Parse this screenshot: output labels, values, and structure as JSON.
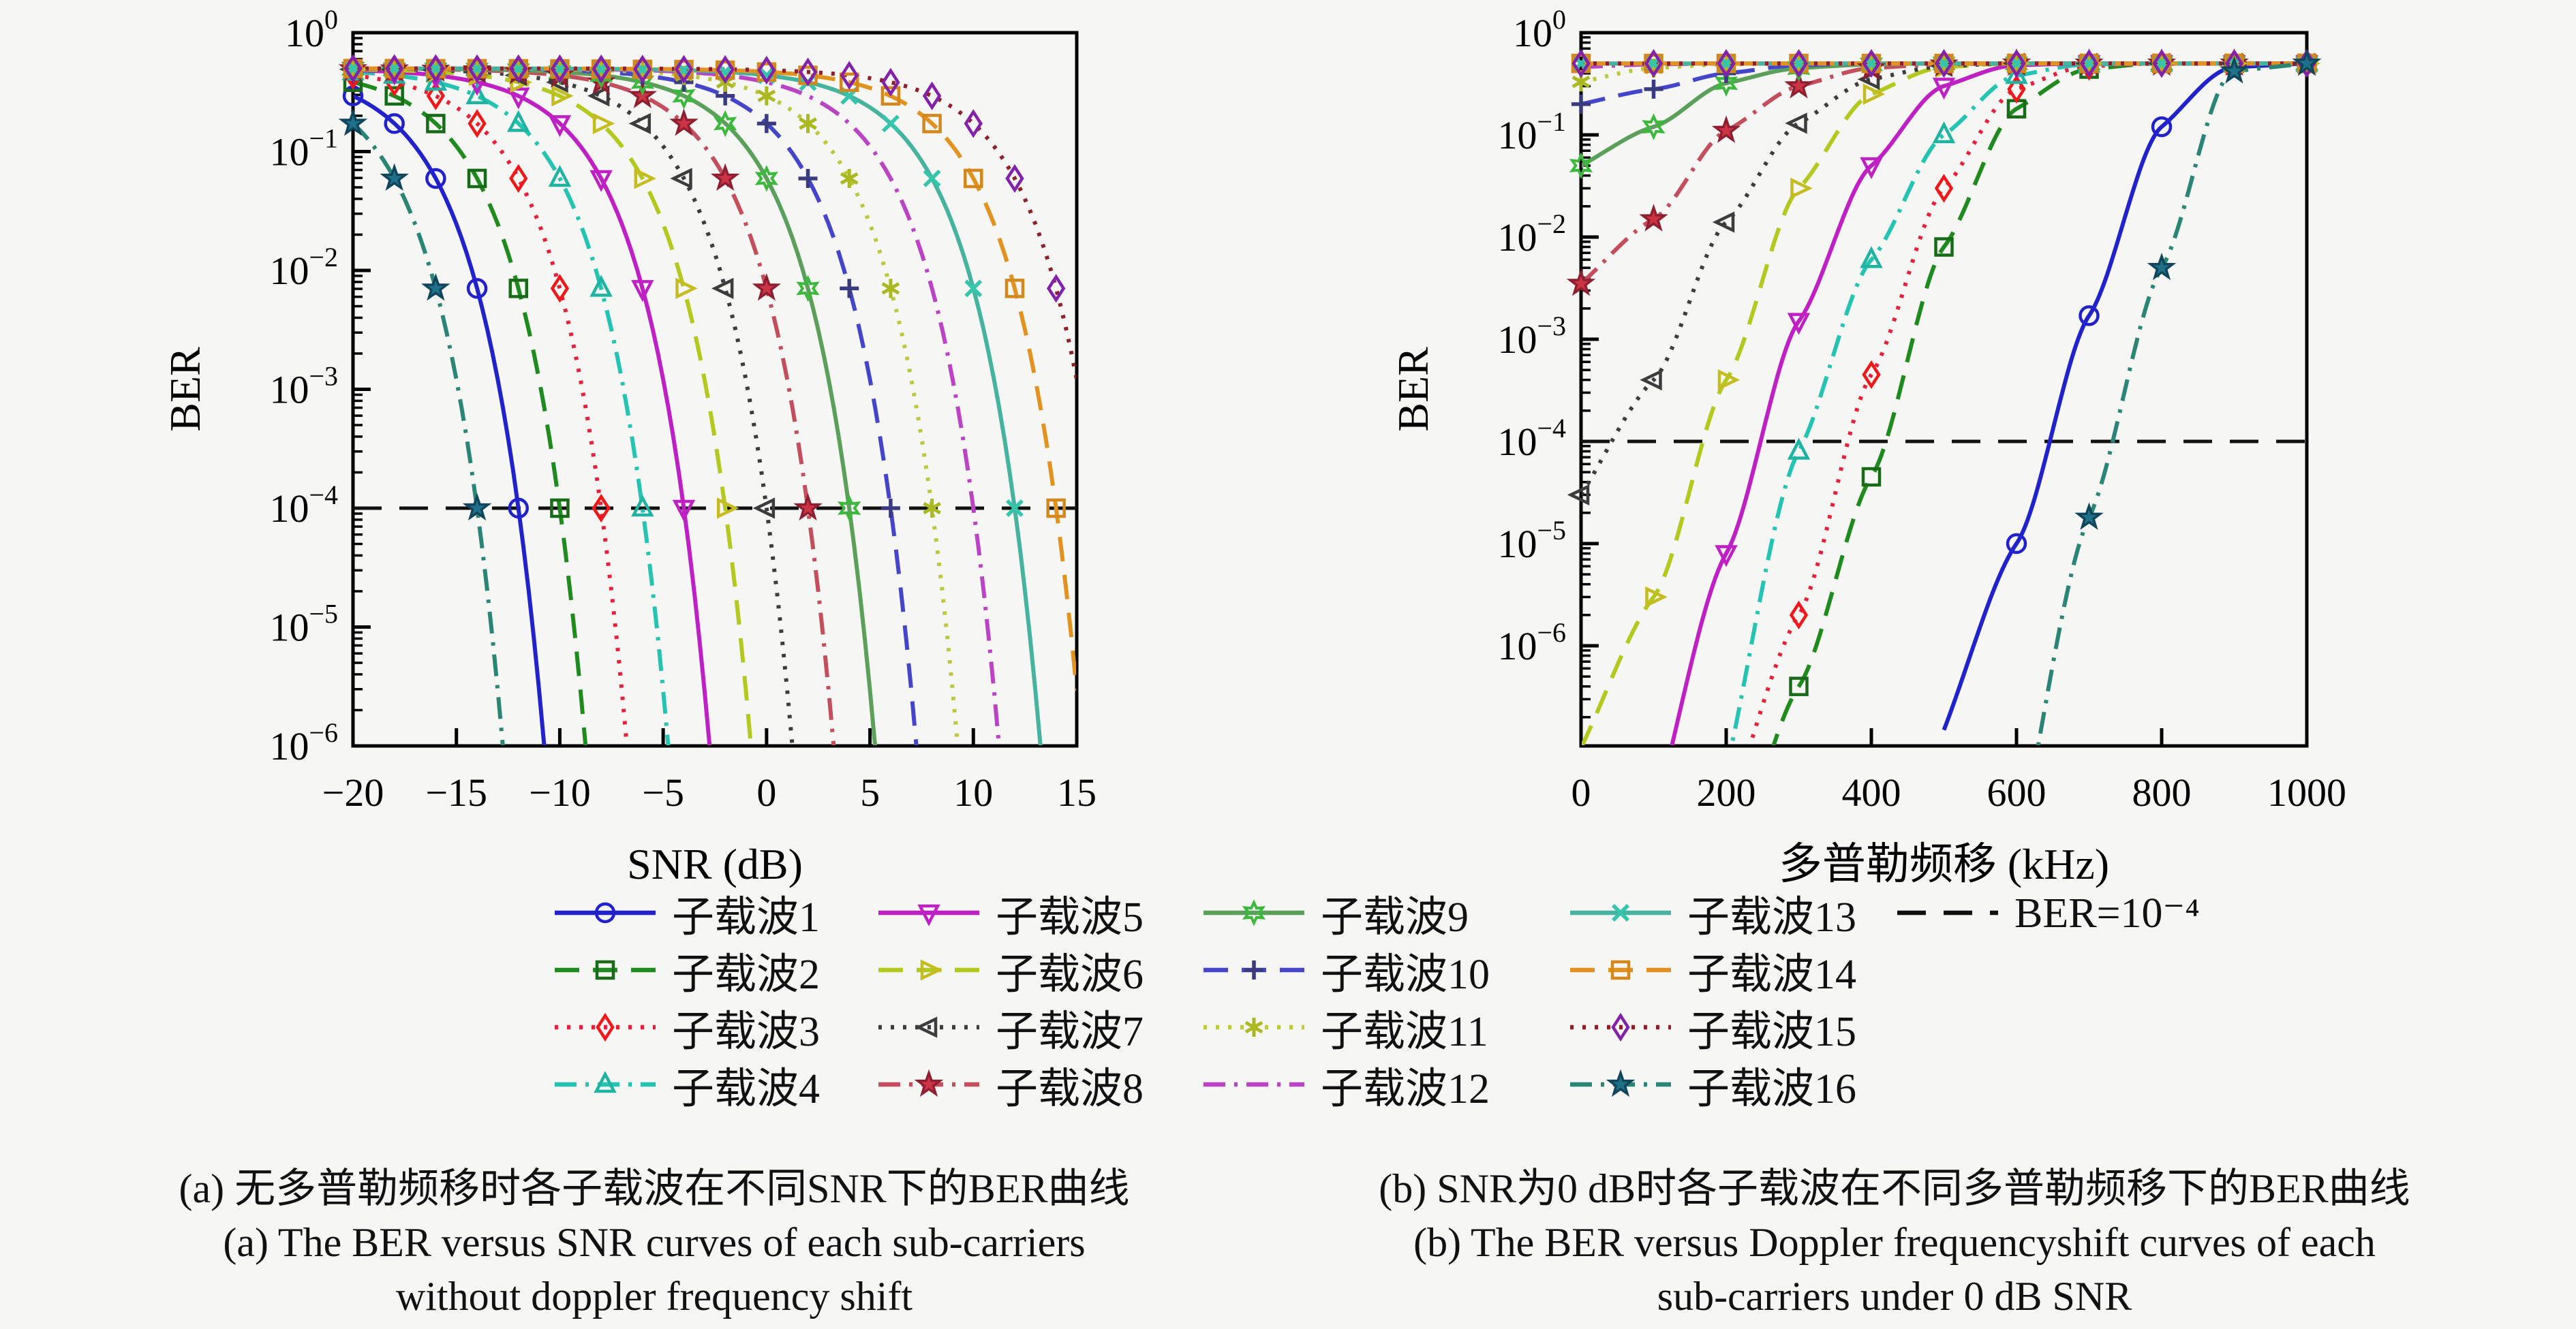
{
  "figure": {
    "background": "#f6f6f4",
    "axis_color": "#000000",
    "threshold_color": "#111111"
  },
  "axes": {
    "panel_a": {
      "xlabel": "SNR (dB)",
      "ylabel": "BER",
      "xtick_labels": [
        "−20",
        "−15",
        "−10",
        "−5",
        "0",
        "5",
        "10",
        "15"
      ]
    },
    "panel_b": {
      "xlabel": "多普勒频移 (kHz)",
      "ylabel": "BER",
      "xtick_labels": [
        "0",
        "200",
        "400",
        "600",
        "800",
        "1000"
      ]
    },
    "ytick_exponents": [
      "0",
      "-1",
      "-2",
      "-3",
      "-4",
      "-5",
      "-6"
    ]
  },
  "legend": {
    "entries": [
      {
        "id": "c1",
        "label": "子载波1",
        "color": "#2222cc",
        "marker": "circle",
        "marker_color": "#2222cc",
        "linestyle": "solid"
      },
      {
        "id": "c2",
        "label": "子载波2",
        "color": "#1f8b1f",
        "marker": "square",
        "marker_color": "#176b17",
        "linestyle": "dashed"
      },
      {
        "id": "c3",
        "label": "子载波3",
        "color": "#e8203a",
        "marker": "diamond",
        "marker_color": "#f01818",
        "linestyle": "dotted"
      },
      {
        "id": "c4",
        "label": "子载波4",
        "color": "#25c4b2",
        "marker": "triangle-up",
        "marker_color": "#1fb3a2",
        "linestyle": "dashdot"
      },
      {
        "id": "c5",
        "label": "子载波5",
        "color": "#bf20c4",
        "marker": "triangle-down",
        "marker_color": "#bf20c4",
        "linestyle": "solid"
      },
      {
        "id": "c6",
        "label": "子载波6",
        "color": "#b3c920",
        "marker": "triangle-right",
        "marker_color": "#c4bc20",
        "linestyle": "dashed"
      },
      {
        "id": "c7",
        "label": "子载波7",
        "color": "#3c3c3c",
        "marker": "triangle-left",
        "marker_color": "#3c3c3c",
        "linestyle": "dotted"
      },
      {
        "id": "c8",
        "label": "子载波8",
        "color": "#c44d5e",
        "marker": "star5-filled",
        "marker_color": "#cc3344",
        "marker_stroke": "#8e1f30",
        "linestyle": "dashdot"
      },
      {
        "id": "c9",
        "label": "子载波9",
        "color": "#5aa05a",
        "marker": "hexagram",
        "marker_color": "#3cb83c",
        "linestyle": "solid"
      },
      {
        "id": "c10",
        "label": "子载波10",
        "color": "#4545cc",
        "marker": "plus",
        "marker_color": "#3a3a80",
        "linestyle": "dashed"
      },
      {
        "id": "c11",
        "label": "子载波11",
        "color": "#bcc83e",
        "marker": "asterisk",
        "marker_color": "#aab822",
        "linestyle": "dotted"
      },
      {
        "id": "c12",
        "label": "子载波12",
        "color": "#bb44c4",
        "marker": "none",
        "marker_color": "#bb44c4",
        "linestyle": "dashdot"
      },
      {
        "id": "c13",
        "label": "子载波13",
        "color": "#45b39d",
        "marker": "x",
        "marker_color": "#35c4ac",
        "linestyle": "solid"
      },
      {
        "id": "c14",
        "label": "子载波14",
        "color": "#e2921f",
        "marker": "square",
        "marker_color": "#d4881c",
        "linestyle": "dashed"
      },
      {
        "id": "c15",
        "label": "子载波15",
        "color": "#8f1f28",
        "marker": "diamond",
        "marker_color": "#8321a8",
        "linestyle": "dotted"
      },
      {
        "id": "c16",
        "label": "子载波16",
        "color": "#2a8575",
        "marker": "star5-filled",
        "marker_color": "#1f7189",
        "marker_stroke": "#10455c",
        "linestyle": "dashdot"
      }
    ],
    "threshold_entry": {
      "label": "BER=10⁻⁴",
      "color": "#111111",
      "linestyle": "dashed",
      "marker": "none"
    }
  },
  "captions": {
    "a_cn": "(a) 无多普勒频移时各子载波在不同SNR下的BER曲线",
    "a_en1": "(a) The BER versus SNR curves of each sub-carriers",
    "a_en2": "without doppler frequency shift",
    "b_cn": "(b) SNR为0 dB时各子载波在不同多普勒频移下的BER曲线",
    "b_en1": "(b) The BER versus Doppler frequencyshift curves of each",
    "b_en2": "sub-carriers under 0 dB SNR"
  },
  "chart_data": [
    {
      "id": "panel_a",
      "type": "line",
      "title": "",
      "xlabel": "SNR (dB)",
      "ylabel": "BER",
      "xlim": [
        -20,
        15
      ],
      "xticks": [
        -20,
        -15,
        -10,
        -5,
        0,
        5,
        10,
        15
      ],
      "ylim_log10": [
        -6,
        0
      ],
      "grid": false,
      "threshold_ber": 0.0001,
      "marker_x": [
        -20,
        -18,
        -16,
        -14,
        -12,
        -10,
        -8,
        -6,
        -4,
        -2,
        0,
        2,
        4,
        6,
        8,
        10,
        12,
        14
      ],
      "waterfall_model": {
        "form": "log10(ber) = -0.301 - 3.7*2^((snr - snr_cross)/2)",
        "amplitude": 3.7,
        "halving_db": 2,
        "plateau_ber": 0.5
      },
      "series": [
        {
          "name": "子载波1",
          "snr_cross_1e-4": -12,
          "y": [
            0.294,
            0.172,
            0.0594,
            0.00706,
            0.0001,
            2e-08,
            null,
            null,
            null,
            null,
            null,
            null,
            null,
            null,
            null,
            null,
            null,
            null
          ]
        },
        {
          "name": "子载波2",
          "snr_cross_1e-4": -10,
          "y": [
            0.383,
            0.294,
            0.172,
            0.0594,
            0.00706,
            0.0001,
            2e-08,
            null,
            null,
            null,
            null,
            null,
            null,
            null,
            null,
            null,
            null,
            null
          ]
        },
        {
          "name": "子载波3",
          "snr_cross_1e-4": -8,
          "y": [
            0.438,
            0.383,
            0.294,
            0.172,
            0.0594,
            0.00706,
            0.0001,
            2e-08,
            null,
            null,
            null,
            null,
            null,
            null,
            null,
            null,
            null,
            null
          ]
        },
        {
          "name": "子载波4",
          "snr_cross_1e-4": -6,
          "y": [
            0.467,
            0.438,
            0.383,
            0.294,
            0.172,
            0.0594,
            0.00706,
            0.0001,
            2e-08,
            null,
            null,
            null,
            null,
            null,
            null,
            null,
            null,
            null
          ]
        },
        {
          "name": "子载波5",
          "snr_cross_1e-4": -4,
          "y": [
            0.484,
            0.467,
            0.438,
            0.383,
            0.294,
            0.172,
            0.0594,
            0.00706,
            0.0001,
            2e-08,
            null,
            null,
            null,
            null,
            null,
            null,
            null,
            null
          ]
        },
        {
          "name": "子载波6",
          "snr_cross_1e-4": -2,
          "y": [
            0.49,
            0.484,
            0.467,
            0.438,
            0.383,
            0.294,
            0.172,
            0.0594,
            0.00706,
            0.0001,
            2e-08,
            null,
            null,
            null,
            null,
            null,
            null,
            null
          ]
        },
        {
          "name": "子载波7",
          "snr_cross_1e-4": 0,
          "y": [
            0.492,
            0.49,
            0.484,
            0.467,
            0.438,
            0.383,
            0.294,
            0.172,
            0.0594,
            0.00706,
            0.0001,
            2e-08,
            null,
            null,
            null,
            null,
            null,
            null
          ]
        },
        {
          "name": "子载波8",
          "snr_cross_1e-4": 2,
          "y": [
            0.494,
            0.492,
            0.49,
            0.484,
            0.467,
            0.438,
            0.383,
            0.294,
            0.172,
            0.0594,
            0.00706,
            0.0001,
            2e-08,
            null,
            null,
            null,
            null,
            null
          ]
        },
        {
          "name": "子载波9",
          "snr_cross_1e-4": 4,
          "y": [
            0.496,
            0.494,
            0.492,
            0.49,
            0.484,
            0.467,
            0.438,
            0.383,
            0.294,
            0.172,
            0.0594,
            0.00706,
            0.0001,
            2e-08,
            null,
            null,
            null,
            null
          ]
        },
        {
          "name": "子载波10",
          "snr_cross_1e-4": 6,
          "y": [
            0.497,
            0.496,
            0.494,
            0.492,
            0.49,
            0.484,
            0.467,
            0.438,
            0.383,
            0.294,
            0.172,
            0.0594,
            0.00706,
            0.0001,
            2e-08,
            null,
            null,
            null
          ]
        },
        {
          "name": "子载波11",
          "snr_cross_1e-4": 8,
          "y": [
            0.498,
            0.497,
            0.496,
            0.494,
            0.492,
            0.49,
            0.484,
            0.467,
            0.438,
            0.383,
            0.294,
            0.172,
            0.0594,
            0.00706,
            0.0001,
            2e-08,
            null,
            null
          ]
        },
        {
          "name": "子载波12",
          "snr_cross_1e-4": 10,
          "y": [
            0.498,
            0.498,
            0.497,
            0.496,
            0.494,
            0.492,
            0.49,
            0.484,
            0.467,
            0.438,
            0.383,
            0.294,
            0.172,
            0.0594,
            0.00706,
            0.0001,
            2e-08,
            null
          ]
        },
        {
          "name": "子载波13",
          "snr_cross_1e-4": 12,
          "y": [
            0.499,
            0.498,
            0.498,
            0.497,
            0.496,
            0.494,
            0.492,
            0.49,
            0.484,
            0.467,
            0.438,
            0.383,
            0.294,
            0.172,
            0.0594,
            0.00706,
            0.0001,
            2e-08
          ]
        },
        {
          "name": "子载波14",
          "snr_cross_1e-4": 14,
          "y": [
            0.499,
            0.499,
            0.498,
            0.498,
            0.497,
            0.496,
            0.494,
            0.492,
            0.49,
            0.484,
            0.467,
            0.438,
            0.383,
            0.294,
            0.172,
            0.0594,
            0.00706,
            0.0001
          ]
        },
        {
          "name": "子载波15",
          "snr_cross_1e-4": 16,
          "y": [
            0.5,
            0.499,
            0.499,
            0.498,
            0.498,
            0.497,
            0.496,
            0.494,
            0.492,
            0.49,
            0.484,
            0.467,
            0.438,
            0.383,
            0.294,
            0.172,
            0.0594,
            0.00706
          ]
        },
        {
          "name": "子载波16",
          "snr_cross_1e-4": -14,
          "y": [
            0.172,
            0.0594,
            0.00706,
            0.0001,
            2e-08,
            null,
            null,
            null,
            null,
            null,
            null,
            null,
            null,
            null,
            null,
            null,
            null,
            null
          ]
        }
      ]
    },
    {
      "id": "panel_b",
      "type": "line",
      "title": "",
      "xlabel": "多普勒频移 (kHz)",
      "ylabel": "BER",
      "xlim": [
        0,
        1000
      ],
      "xticks": [
        0,
        200,
        400,
        600,
        800,
        1000
      ],
      "ylim_log10": [
        -6.98,
        0
      ],
      "grid": false,
      "threshold_ber": 0.0001,
      "x": [
        0,
        100,
        200,
        300,
        400,
        500,
        600,
        700,
        800,
        900,
        1000
      ],
      "series": [
        {
          "name": "子载波1",
          "y": [
            null,
            null,
            null,
            null,
            null,
            1.5e-07,
            1e-05,
            0.0017,
            0.12,
            0.46,
            0.5
          ]
        },
        {
          "name": "子载波2",
          "y": [
            null,
            null,
            3e-09,
            4e-07,
            4.5e-05,
            0.008,
            0.18,
            0.44,
            0.5,
            0.5,
            0.5
          ]
        },
        {
          "name": "子载波3",
          "y": [
            null,
            null,
            2e-08,
            2e-06,
            0.00045,
            0.03,
            0.28,
            0.47,
            0.5,
            0.5,
            0.5
          ]
        },
        {
          "name": "子载波4",
          "y": [
            null,
            null,
            6e-08,
            8e-05,
            0.006,
            0.1,
            0.38,
            0.49,
            0.5,
            0.5,
            0.5
          ]
        },
        {
          "name": "子载波5",
          "y": [
            null,
            2e-08,
            8e-06,
            0.0015,
            0.05,
            0.3,
            0.48,
            0.5,
            0.5,
            0.5,
            0.5
          ]
        },
        {
          "name": "子载波6",
          "y": [
            1e-07,
            3e-06,
            0.0004,
            0.03,
            0.25,
            0.46,
            0.5,
            0.5,
            0.5,
            0.5,
            0.5
          ]
        },
        {
          "name": "子载波7",
          "y": [
            3e-05,
            0.0004,
            0.014,
            0.13,
            0.35,
            0.47,
            0.5,
            0.5,
            0.5,
            0.5,
            0.5
          ]
        },
        {
          "name": "子载波8",
          "y": [
            0.0035,
            0.015,
            0.11,
            0.3,
            0.45,
            0.49,
            0.5,
            0.5,
            0.5,
            0.5,
            0.5
          ]
        },
        {
          "name": "子载波9",
          "y": [
            0.05,
            0.12,
            0.32,
            0.45,
            0.49,
            0.5,
            0.5,
            0.5,
            0.5,
            0.5,
            0.5
          ]
        },
        {
          "name": "子载波10",
          "y": [
            0.2,
            0.28,
            0.4,
            0.48,
            0.5,
            0.5,
            0.5,
            0.5,
            0.5,
            0.5,
            0.5
          ]
        },
        {
          "name": "子载波11",
          "y": [
            0.33,
            0.45,
            0.49,
            0.5,
            0.5,
            0.5,
            0.5,
            0.5,
            0.5,
            0.5,
            0.5
          ]
        },
        {
          "name": "子载波12",
          "y": [
            0.46,
            0.49,
            0.5,
            0.5,
            0.5,
            0.5,
            0.5,
            0.5,
            0.5,
            0.5,
            0.5
          ]
        },
        {
          "name": "子载波13",
          "y": [
            0.5,
            0.5,
            0.5,
            0.5,
            0.5,
            0.5,
            0.5,
            0.5,
            0.5,
            0.5,
            0.5
          ]
        },
        {
          "name": "子载波14",
          "y": [
            0.5,
            0.5,
            0.5,
            0.5,
            0.5,
            0.5,
            0.5,
            0.5,
            0.5,
            0.5,
            0.5
          ]
        },
        {
          "name": "子载波15",
          "y": [
            0.5,
            0.5,
            0.5,
            0.5,
            0.5,
            0.5,
            0.5,
            0.5,
            0.5,
            0.5,
            0.5
          ]
        },
        {
          "name": "子载波16",
          "y": [
            null,
            null,
            null,
            null,
            null,
            null,
            8e-09,
            1.8e-05,
            0.005,
            0.42,
            0.5
          ]
        }
      ]
    }
  ]
}
